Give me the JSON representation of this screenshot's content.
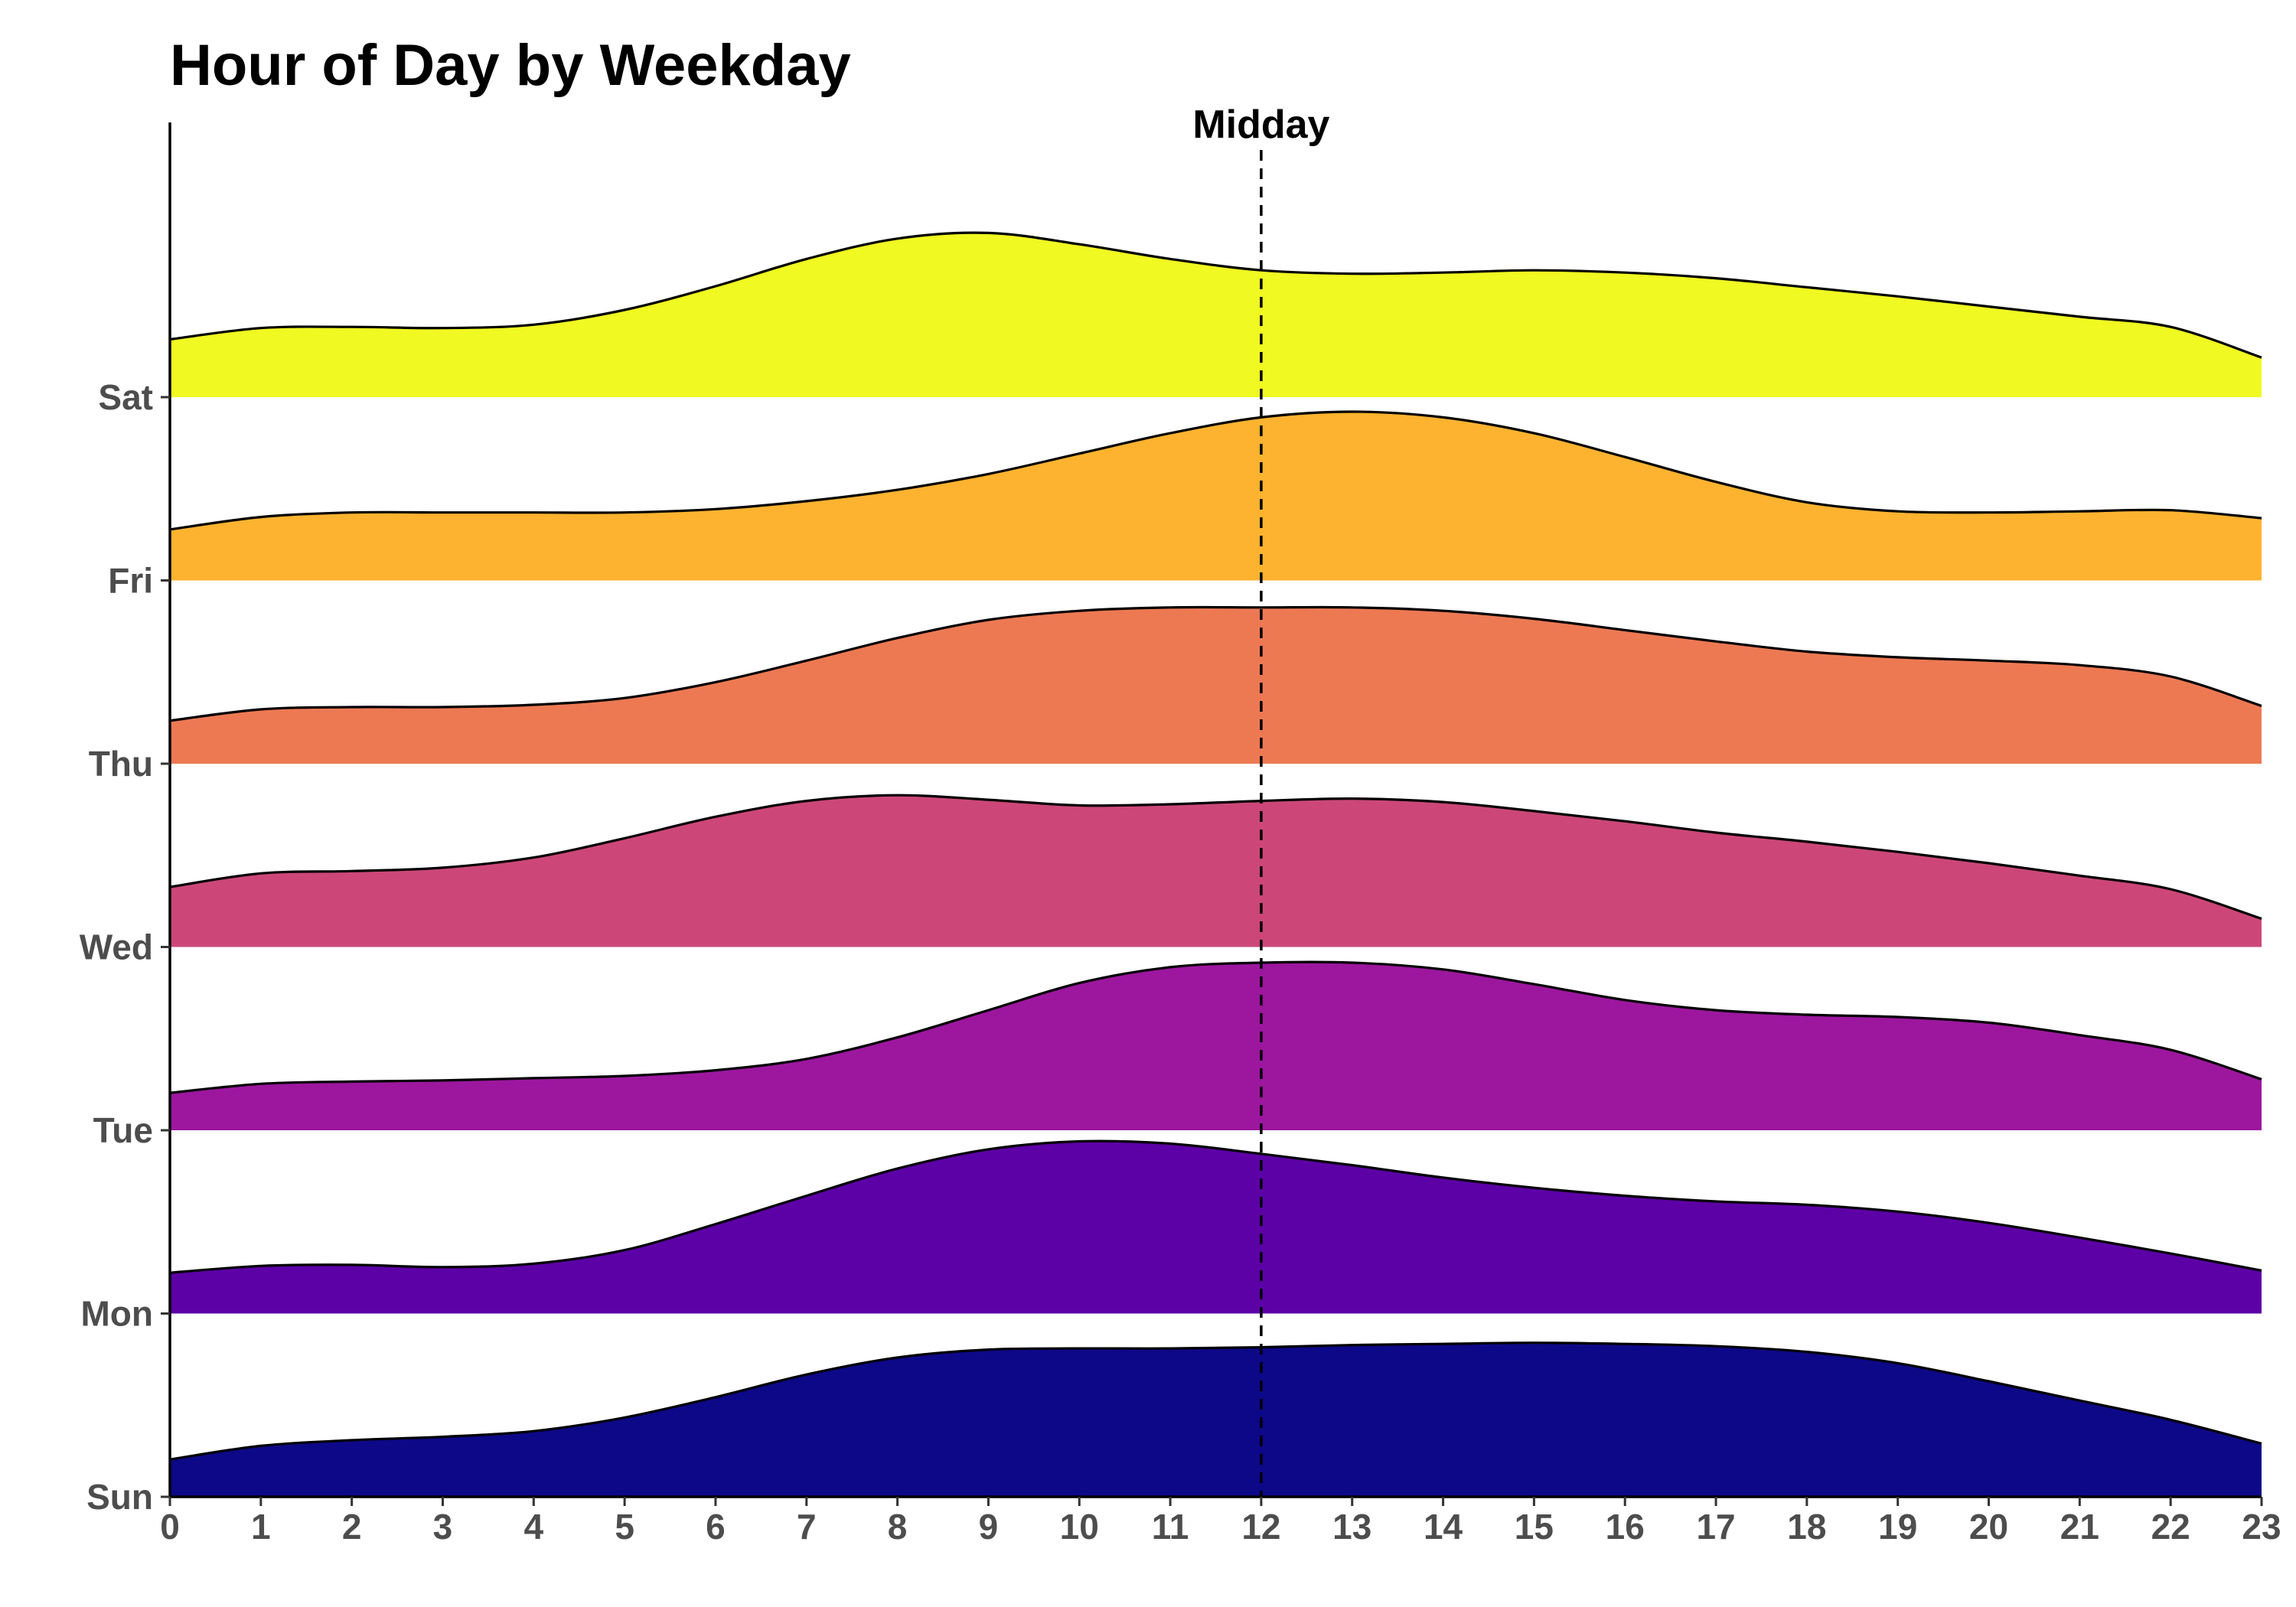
{
  "chart_data": {
    "type": "ridgeline",
    "title": "Hour of Day by Weekday",
    "xlabel": "",
    "ylabel": "",
    "xlim": [
      0,
      23
    ],
    "x_ticks": [
      0,
      1,
      2,
      3,
      4,
      5,
      6,
      7,
      8,
      9,
      10,
      11,
      12,
      13,
      14,
      15,
      16,
      17,
      18,
      19,
      20,
      21,
      22,
      23
    ],
    "categories": [
      "Sun",
      "Mon",
      "Tue",
      "Wed",
      "Thu",
      "Fri",
      "Sat"
    ],
    "grid": false,
    "legend": "none",
    "annotation": {
      "label": "Midday",
      "x": 12,
      "style": "dashed vertical line"
    },
    "x": [
      0,
      1,
      2,
      3,
      4,
      5,
      6,
      7,
      8,
      9,
      10,
      11,
      12,
      13,
      14,
      15,
      16,
      17,
      18,
      19,
      20,
      21,
      22,
      23
    ],
    "series": [
      {
        "name": "Sun",
        "color": "#0d0887",
        "values": [
          0.33,
          0.45,
          0.5,
          0.53,
          0.58,
          0.7,
          0.88,
          1.08,
          1.23,
          1.3,
          1.31,
          1.31,
          1.32,
          1.34,
          1.35,
          1.36,
          1.35,
          1.33,
          1.28,
          1.18,
          1.02,
          0.85,
          0.68,
          0.47
        ]
      },
      {
        "name": "Mon",
        "color": "#5c01a6",
        "values": [
          0.36,
          0.42,
          0.43,
          0.41,
          0.44,
          0.56,
          0.79,
          1.04,
          1.28,
          1.45,
          1.52,
          1.5,
          1.41,
          1.31,
          1.2,
          1.11,
          1.04,
          0.99,
          0.96,
          0.9,
          0.8,
          0.67,
          0.53,
          0.38
        ]
      },
      {
        "name": "Tue",
        "color": "#9c179e",
        "values": [
          0.33,
          0.41,
          0.43,
          0.44,
          0.46,
          0.48,
          0.53,
          0.63,
          0.82,
          1.06,
          1.3,
          1.44,
          1.48,
          1.48,
          1.42,
          1.29,
          1.15,
          1.06,
          1.02,
          1.0,
          0.95,
          0.84,
          0.71,
          0.45
        ]
      },
      {
        "name": "Wed",
        "color": "#cc4778",
        "values": [
          0.53,
          0.65,
          0.67,
          0.7,
          0.79,
          0.96,
          1.15,
          1.29,
          1.34,
          1.3,
          1.25,
          1.26,
          1.29,
          1.31,
          1.28,
          1.2,
          1.11,
          1.01,
          0.93,
          0.84,
          0.74,
          0.63,
          0.51,
          0.25
        ]
      },
      {
        "name": "Thu",
        "color": "#ed7953",
        "values": [
          0.38,
          0.48,
          0.5,
          0.5,
          0.52,
          0.58,
          0.72,
          0.91,
          1.11,
          1.27,
          1.35,
          1.38,
          1.38,
          1.38,
          1.35,
          1.28,
          1.18,
          1.08,
          0.99,
          0.94,
          0.91,
          0.87,
          0.77,
          0.51
        ]
      },
      {
        "name": "Fri",
        "color": "#fdb32f",
        "values": [
          0.45,
          0.56,
          0.6,
          0.6,
          0.6,
          0.6,
          0.63,
          0.7,
          0.8,
          0.94,
          1.12,
          1.3,
          1.44,
          1.49,
          1.44,
          1.3,
          1.09,
          0.87,
          0.69,
          0.61,
          0.6,
          0.61,
          0.62,
          0.55
        ]
      },
      {
        "name": "Sat",
        "color": "#f0f921",
        "values": [
          0.51,
          0.61,
          0.62,
          0.61,
          0.64,
          0.77,
          0.98,
          1.22,
          1.4,
          1.45,
          1.35,
          1.22,
          1.12,
          1.09,
          1.1,
          1.12,
          1.1,
          1.05,
          0.97,
          0.89,
          0.8,
          0.71,
          0.62,
          0.35
        ]
      }
    ]
  }
}
